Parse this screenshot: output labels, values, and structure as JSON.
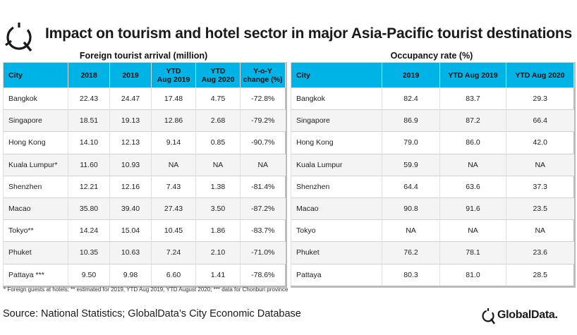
{
  "title": "Impact on tourism and hotel sector in major Asia-Pacific tourist destinations",
  "left_table": {
    "subtitle": "Foreign tourist arrival (million)",
    "headers": [
      "City",
      "2018",
      "2019",
      "YTD\nAug 2019",
      "YTD\nAug 2020",
      "Y-o-Y\nchange (%)"
    ],
    "rows": [
      [
        "Bangkok",
        "22.43",
        "24.47",
        "17.48",
        "4.75",
        "-72.8%"
      ],
      [
        "Singapore",
        "18.51",
        "19.13",
        "12.86",
        "2.68",
        "-79.2%"
      ],
      [
        "Hong Kong",
        "14.10",
        "12.13",
        "9.14",
        "0.85",
        "-90.7%"
      ],
      [
        "Kuala Lumpur*",
        "11.60",
        "10.93",
        "NA",
        "NA",
        "NA"
      ],
      [
        "Shenzhen",
        "12.21",
        "12.16",
        "7.43",
        "1.38",
        "-81.4%"
      ],
      [
        "Macao",
        "35.80",
        "39.40",
        "27.43",
        "3.50",
        "-87.2%"
      ],
      [
        "Tokyo**",
        "14.24",
        "15.04",
        "10.45",
        "1.86",
        "-83.7%"
      ],
      [
        "Phuket",
        "10.35",
        "10.63",
        "7.24",
        "2.10",
        "-71.0%"
      ],
      [
        "Pattaya ***",
        "9.50",
        "9.98",
        "6.60",
        "1.41",
        "-78.6%"
      ]
    ]
  },
  "right_table": {
    "subtitle": "Occupancy rate (%)",
    "headers": [
      "City",
      "2019",
      "YTD Aug 2019",
      "YTD Aug 2020"
    ],
    "rows": [
      [
        "Bangkok",
        "82.4",
        "83.7",
        "29.3"
      ],
      [
        "Singapore",
        "86.9",
        "87.2",
        "66.4"
      ],
      [
        "Hong Kong",
        "79.0",
        "86.0",
        "42.0"
      ],
      [
        "Kuala Lumpur",
        "59.9",
        "NA",
        "NA"
      ],
      [
        "Shenzhen",
        "64.4",
        "63.6",
        "37.3"
      ],
      [
        "Macao",
        "90.8",
        "91.6",
        "23.5"
      ],
      [
        "Tokyo",
        "NA",
        "NA",
        "NA"
      ],
      [
        "Phuket",
        "76.2",
        "78.1",
        "23.6"
      ],
      [
        "Pattaya",
        "80.3",
        "81.0",
        "28.5"
      ]
    ]
  },
  "footnote": "* Foreign guests at hotels; ** estimated for 2019, YTD Aug 2019, YTD August 2020; *** data for Chonburi province",
  "source": "Source: National Statistics; GlobalData’s City Economic Database",
  "brand": "GlobalData.",
  "colors": {
    "header_bg": "#00b3e6",
    "stripe_bg": "#f4f4f4"
  },
  "chart_data": [
    {
      "type": "table",
      "title": "Foreign tourist arrival (million)",
      "columns": [
        "City",
        "2018",
        "2019",
        "YTD Aug 2019",
        "YTD Aug 2020",
        "Y-o-Y change (%)"
      ],
      "categories": [
        "Bangkok",
        "Singapore",
        "Hong Kong",
        "Kuala Lumpur*",
        "Shenzhen",
        "Macao",
        "Tokyo**",
        "Phuket",
        "Pattaya ***"
      ],
      "series": [
        {
          "name": "2018",
          "values": [
            22.43,
            18.51,
            14.1,
            11.6,
            12.21,
            35.8,
            14.24,
            10.35,
            9.5
          ]
        },
        {
          "name": "2019",
          "values": [
            24.47,
            19.13,
            12.13,
            10.93,
            12.16,
            39.4,
            15.04,
            10.63,
            9.98
          ]
        },
        {
          "name": "YTD Aug 2019",
          "values": [
            17.48,
            12.86,
            9.14,
            null,
            7.43,
            27.43,
            10.45,
            7.24,
            6.6
          ]
        },
        {
          "name": "YTD Aug 2020",
          "values": [
            4.75,
            2.68,
            0.85,
            null,
            1.38,
            3.5,
            1.86,
            2.1,
            1.41
          ]
        },
        {
          "name": "Y-o-Y change (%)",
          "values": [
            -72.8,
            -79.2,
            -90.7,
            null,
            -81.4,
            -87.2,
            -83.7,
            -71.0,
            -78.6
          ]
        }
      ]
    },
    {
      "type": "table",
      "title": "Occupancy rate (%)",
      "columns": [
        "City",
        "2019",
        "YTD Aug 2019",
        "YTD Aug 2020"
      ],
      "categories": [
        "Bangkok",
        "Singapore",
        "Hong Kong",
        "Kuala Lumpur",
        "Shenzhen",
        "Macao",
        "Tokyo",
        "Phuket",
        "Pattaya"
      ],
      "series": [
        {
          "name": "2019",
          "values": [
            82.4,
            86.9,
            79.0,
            59.9,
            64.4,
            90.8,
            null,
            76.2,
            80.3
          ]
        },
        {
          "name": "YTD Aug 2019",
          "values": [
            83.7,
            87.2,
            86.0,
            null,
            63.6,
            91.6,
            null,
            78.1,
            81.0
          ]
        },
        {
          "name": "YTD Aug 2020",
          "values": [
            29.3,
            66.4,
            42.0,
            null,
            37.3,
            23.5,
            null,
            23.6,
            28.5
          ]
        }
      ]
    }
  ]
}
